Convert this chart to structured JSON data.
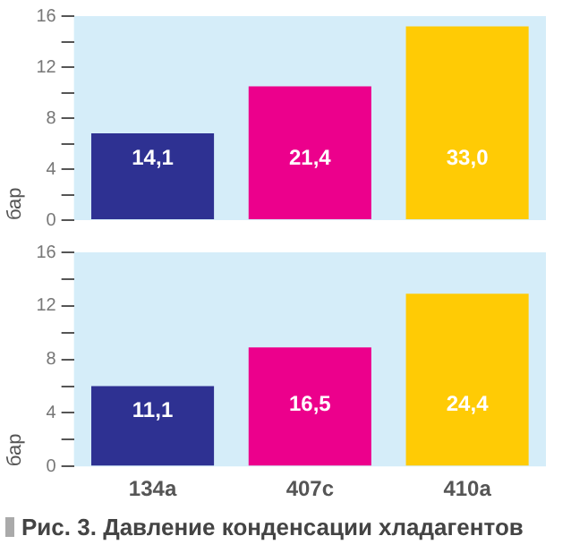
{
  "chart_data": [
    {
      "type": "bar",
      "ylabel": "бар",
      "categories": [
        null,
        null,
        null
      ],
      "values": [
        6.8,
        10.5,
        15.2
      ],
      "colors": [
        "#2e3192",
        "#ec008c",
        "#ffcb05"
      ],
      "ylim": [
        0,
        16
      ],
      "yticks": [
        0,
        {
          "value": 2,
          "label": null
        },
        4,
        {
          "value": 6,
          "label": null
        },
        8,
        {
          "value": 10,
          "label": null
        },
        12,
        {
          "value": 14,
          "label": null
        },
        16
      ],
      "tick_labels": "y",
      "grid": false,
      "legend": false,
      "annotations": [
        "14,1",
        "21,4",
        "33,0"
      ]
    },
    {
      "type": "bar",
      "ylabel": "бар",
      "categories": [
        "134a",
        "407c",
        "410a"
      ],
      "values": [
        6.0,
        8.9,
        12.9
      ],
      "colors": [
        "#2e3192",
        "#ec008c",
        "#ffcb05"
      ],
      "ylim": [
        0,
        16
      ],
      "yticks": [
        0,
        {
          "value": 2,
          "label": null
        },
        4,
        {
          "value": 6,
          "label": null
        },
        8,
        {
          "value": 10,
          "label": null
        },
        12,
        {
          "value": 14,
          "label": null
        },
        16
      ],
      "grid": false,
      "legend": false,
      "annotations": [
        "11,1",
        "16,5",
        "24,4",
        "Рис. 3. Давление конденсации хладагентов"
      ]
    }
  ]
}
